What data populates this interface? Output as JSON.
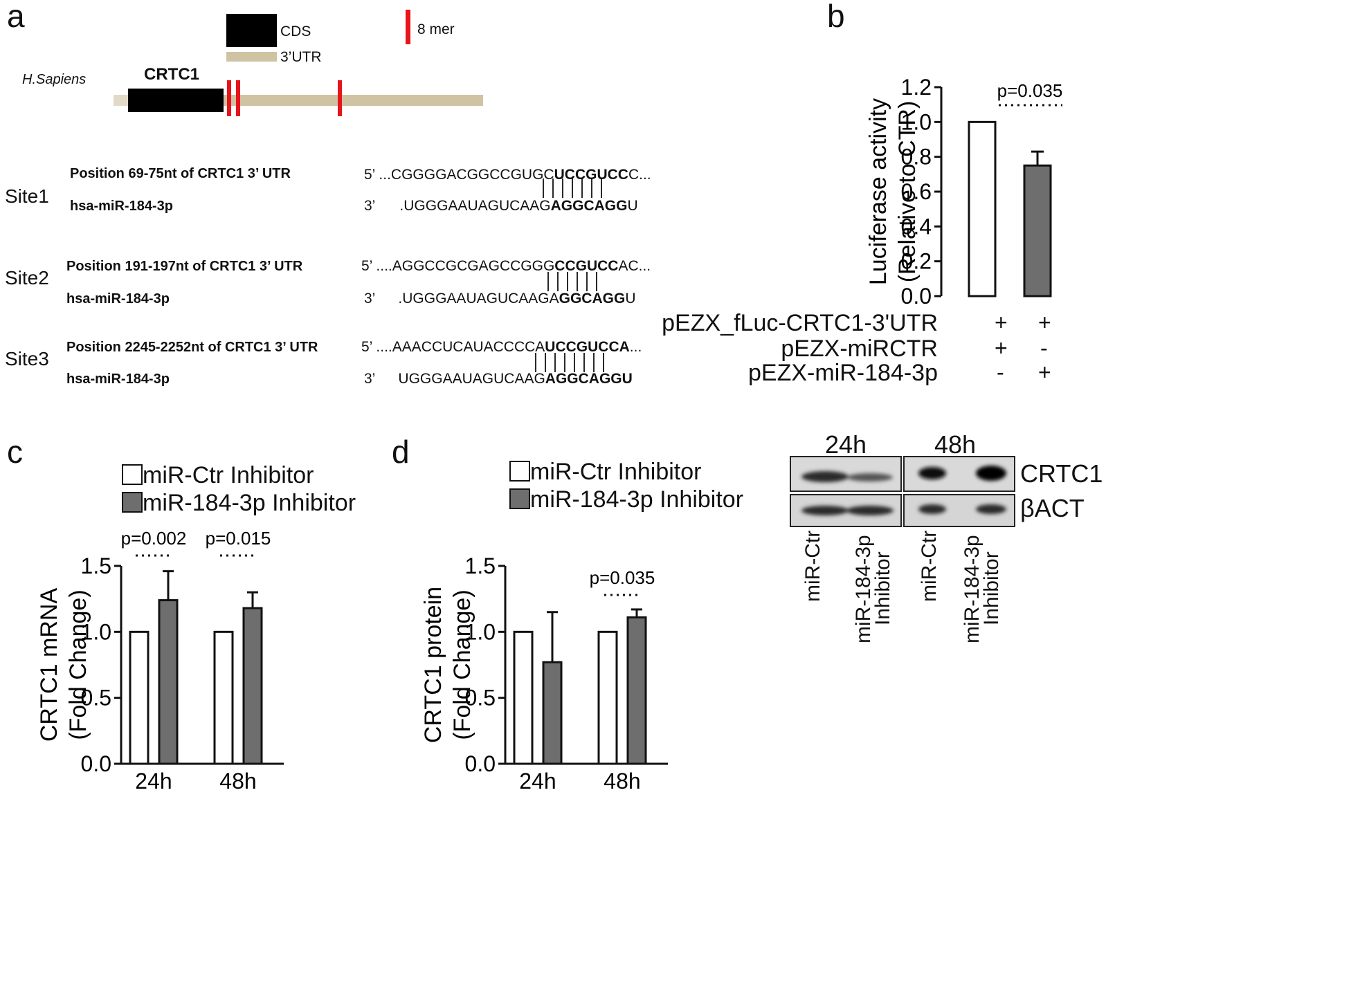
{
  "panel_a": {
    "label": "a",
    "legend": {
      "cds": "CDS",
      "utr": "3’UTR",
      "mer": "8 mer"
    },
    "species": "H.Sapiens",
    "gene": "CRTC1",
    "sites": [
      {
        "site_label": "Site1",
        "position_text": "Position 69-75nt  of CRTC1 3’ UTR",
        "mirna_text": "hsa-miR-184-3p",
        "top_prime": "5’",
        "top_pre": "...CGGGGACGGCCGUGC",
        "top_bold": "UCCGUCC",
        "top_post": "C...",
        "bottom_prime": "3’",
        "bottom_pre": ".UGGGAAUAGUCAAG",
        "bottom_bold": "AGGCAGG",
        "bottom_post": "U"
      },
      {
        "site_label": "Site2",
        "position_text": "Position 191-197nt  of CRTC1 3’ UTR",
        "mirna_text": "hsa-miR-184-3p",
        "top_prime": "5’",
        "top_pre": "....AGGCCGCGAGCCGGG",
        "top_bold": "CCGUCC",
        "top_post": "AC...",
        "bottom_prime": "3’",
        "bottom_pre": ".UGGGAAUAGUCAAGA",
        "bottom_bold": "GGCAGG",
        "bottom_post": "U"
      },
      {
        "site_label": "Site3",
        "position_text": "Position 2245-2252nt  of CRTC1 3’ UTR",
        "mirna_text": "hsa-miR-184-3p",
        "top_prime": "5’",
        "top_pre": "....AAACCUCAUACCCCA",
        "top_bold": "UCCGUCCA",
        "top_post": "...",
        "bottom_prime": "3’",
        "bottom_pre": "UGGGAAUAGUCAAG",
        "bottom_bold": "AGGCAGGU",
        "bottom_post": ""
      }
    ]
  },
  "panel_b": {
    "label": "b",
    "pvalue": "p=0.035",
    "conditions": [
      {
        "label": "pEZX_fLuc-CRTC1-3'UTR",
        "values": [
          "+",
          "+"
        ]
      },
      {
        "label": "pEZX-miRCTR",
        "values": [
          "+",
          "-"
        ]
      },
      {
        "label": "pEZX-miR-184-3p",
        "values": [
          "-",
          "+"
        ]
      }
    ]
  },
  "panel_c": {
    "label": "c",
    "legend": [
      "miR-Ctr Inhibitor",
      "miR-184-3p Inhibitor"
    ]
  },
  "panel_d": {
    "label": "d",
    "legend": [
      "miR-Ctr Inhibitor",
      "miR-184-3p Inhibitor"
    ],
    "blot": {
      "times": [
        "24h",
        "48h"
      ],
      "bands": [
        "CRTC1",
        "βACT"
      ],
      "lanes": [
        {
          "line1": "miR-Ctr",
          "line2": ""
        },
        {
          "line1": "miR-184-3p",
          "line2": "Inhibitor"
        },
        {
          "line1": "miR-Ctr",
          "line2": ""
        },
        {
          "line1": "miR-184-3p",
          "line2": "Inhibitor"
        }
      ]
    }
  },
  "colors": {
    "ctr": "#ffffff",
    "mir": "#6e6e6e",
    "utr": "#cfc3a4",
    "mer": "#e8141b",
    "cds": "#000000"
  },
  "chart_data": [
    {
      "type": "bar",
      "panel": "b",
      "categories": [
        "pEZX-miRCTR",
        "pEZX-miR-184-3p"
      ],
      "values": [
        1.0,
        0.75
      ],
      "errors": [
        0,
        0.08
      ],
      "ylabel": "Luciferase activity",
      "ylabel2": "(Relative to CTR)",
      "ylim": [
        0,
        1.2
      ],
      "ticks": [
        "0.0",
        "0.2",
        "0.4",
        "0.6",
        "0.8",
        "1.0",
        "1.2"
      ],
      "annotations": [
        "p=0.035"
      ]
    },
    {
      "type": "bar",
      "panel": "c",
      "categories": [
        "24h",
        "48h"
      ],
      "series": [
        {
          "name": "miR-Ctr Inhibitor",
          "values": [
            1.0,
            1.0
          ],
          "errors": [
            0,
            0
          ]
        },
        {
          "name": "miR-184-3p Inhibitor",
          "values": [
            1.24,
            1.18
          ],
          "errors": [
            0.22,
            0.12
          ]
        }
      ],
      "ylabel": "CRTC1 mRNA",
      "ylabel2": "(Fold  Change)",
      "ylim": [
        0,
        1.5
      ],
      "ticks": [
        "0.0",
        "0.5",
        "1.0",
        "1.5"
      ],
      "annotations": [
        "p=0.002",
        "p=0.015"
      ]
    },
    {
      "type": "bar",
      "panel": "d",
      "categories": [
        "24h",
        "48h"
      ],
      "series": [
        {
          "name": "miR-Ctr Inhibitor",
          "values": [
            1.0,
            1.0
          ],
          "errors": [
            0,
            0
          ]
        },
        {
          "name": "miR-184-3p Inhibitor",
          "values": [
            0.77,
            1.11
          ],
          "errors": [
            0.38,
            0.06
          ]
        }
      ],
      "ylabel": "CRTC1 protein",
      "ylabel2": "(Fold  Change)",
      "ylim": [
        0,
        1.5
      ],
      "ticks": [
        "0.0",
        "0.5",
        "1.0",
        "1.5"
      ],
      "annotations": [
        "",
        "p=0.035"
      ]
    }
  ]
}
